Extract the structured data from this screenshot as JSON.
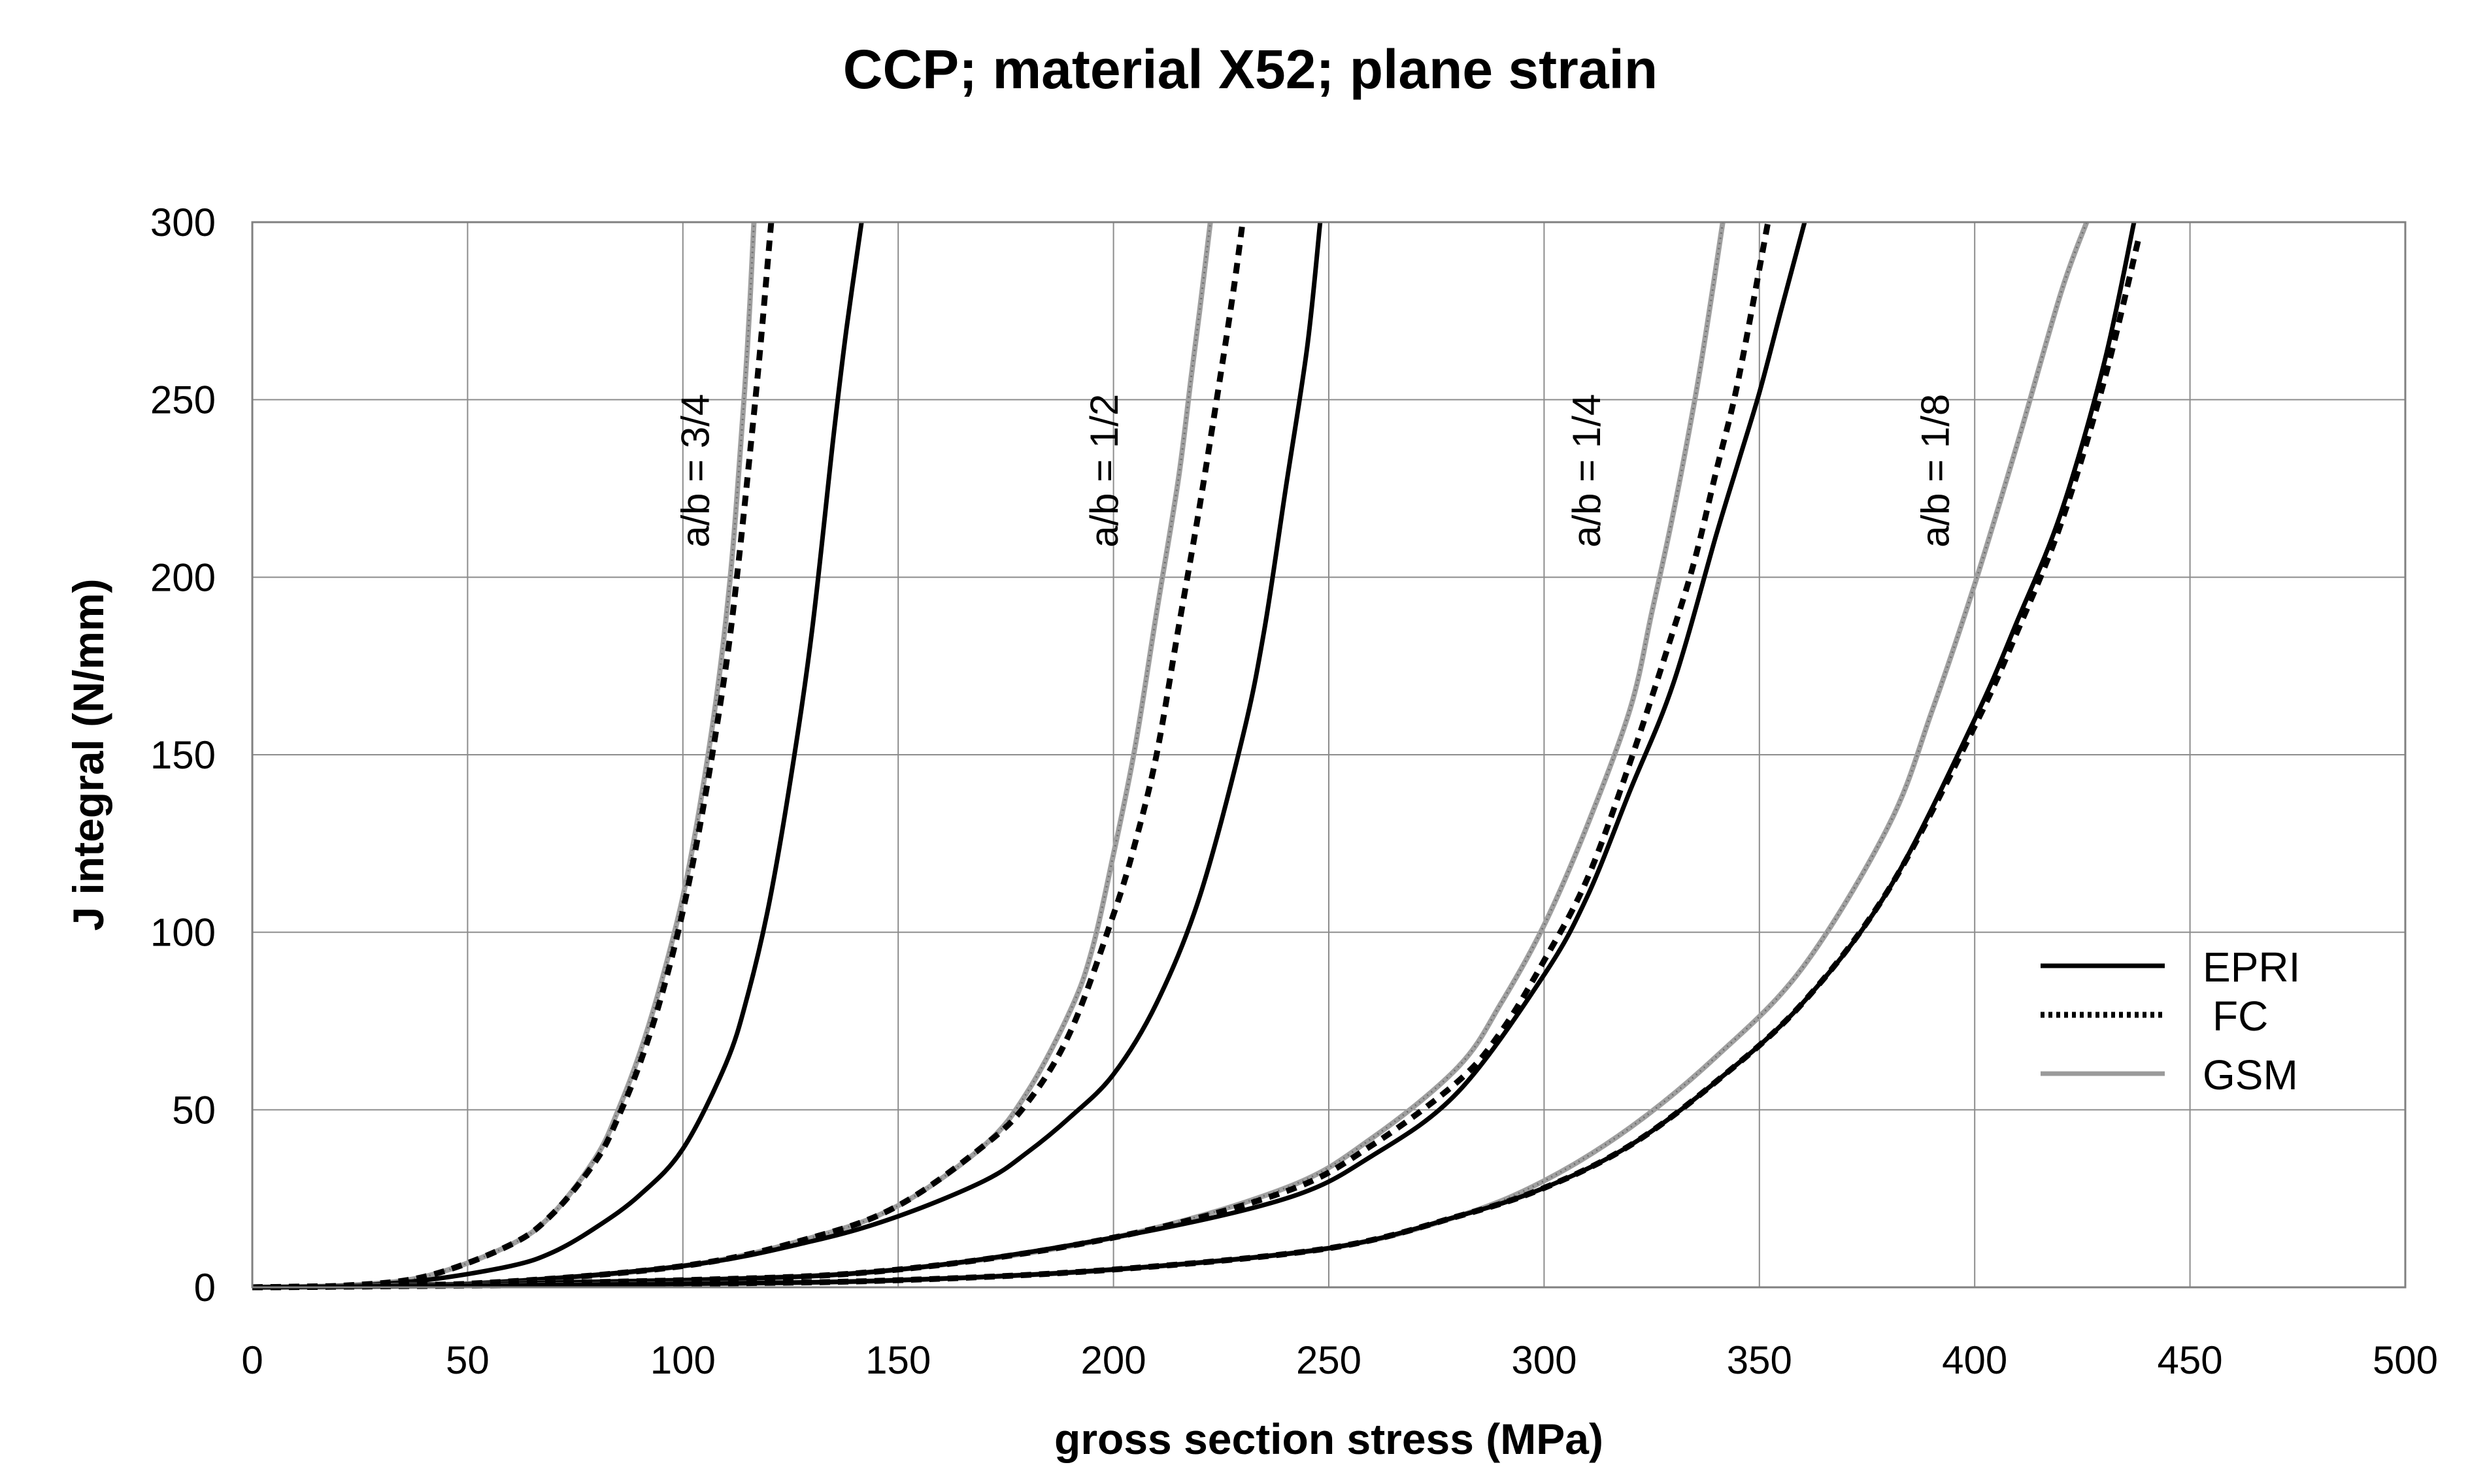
{
  "chart_data": {
    "type": "line",
    "title": "CCP; material X52; plane strain",
    "xlabel": "gross section stress (MPa)",
    "ylabel": "J integral (N/mm)",
    "xlim": [
      0,
      500
    ],
    "ylim": [
      0,
      300
    ],
    "xticks": [
      0,
      50,
      100,
      150,
      200,
      250,
      300,
      350,
      400,
      450,
      500
    ],
    "yticks": [
      0,
      50,
      100,
      150,
      200,
      250,
      300
    ],
    "xtick_labels": [
      "0",
      "50",
      "100",
      "150",
      "200",
      "250",
      "300",
      "350",
      "400",
      "450",
      "500"
    ],
    "ytick_labels": [
      "0",
      "50",
      "100",
      "150",
      "200",
      "250",
      "300"
    ],
    "grid": true,
    "legend": {
      "position": "right",
      "entries": [
        {
          "name": "EPRI",
          "style": "solid",
          "color": "#000000"
        },
        {
          "name": "FC",
          "style": "dotted",
          "color": "#000000"
        },
        {
          "name": "GSM",
          "style": "solid-gray",
          "color": "#9a9a9a"
        }
      ]
    },
    "annotations": [
      {
        "text": "a/b = 3/4",
        "x": 106,
        "y": 230
      },
      {
        "text": "a/b = 1/2",
        "x": 201,
        "y": 230
      },
      {
        "text": "a/b = 1/4",
        "x": 313,
        "y": 230
      },
      {
        "text": "a/b = 1/8",
        "x": 394,
        "y": 230
      }
    ],
    "groups": [
      {
        "label": "a/b = 3/4",
        "series": [
          {
            "name": "EPRI",
            "x": [
              0,
              20,
              40,
              60,
              70,
              80,
              90,
              100,
              110,
              115,
              120,
              125,
              130,
              135,
              138,
              141.5
            ],
            "y": [
              0,
              0.3,
              2,
              6,
              10,
              17,
              26,
              39,
              63,
              82,
              108,
              143,
              185,
              240,
              270,
              300
            ]
          },
          {
            "name": "FC",
            "x": [
              0,
              20,
              40,
              60,
              70,
              80,
              85,
              90,
              95,
              100,
              105,
              110,
              113,
              116,
              118,
              120.5
            ],
            "y": [
              0,
              0.4,
              3,
              12,
              21,
              36,
              48,
              63,
              82,
              106,
              137,
              175,
              205,
              240,
              265,
              300
            ]
          },
          {
            "name": "GSM",
            "x": [
              0,
              20,
              40,
              60,
              70,
              80,
              85,
              90,
              95,
              100,
              104,
              108,
              111,
              113,
              115,
              116.5
            ],
            "y": [
              0,
              0.4,
              3,
              12,
              21,
              37,
              50,
              66,
              86,
              110,
              136,
              168,
              200,
              230,
              265,
              300
            ]
          }
        ]
      },
      {
        "label": "a/b = 1/2",
        "series": [
          {
            "name": "EPRI",
            "x": [
              0,
              50,
              100,
              130,
              150,
              170,
              180,
              190,
              200,
              210,
              220,
              230,
              235,
              240,
              245,
              248
            ],
            "y": [
              0,
              1,
              6,
              13,
              20,
              30,
              38,
              48,
              60,
              80,
              110,
              155,
              185,
              225,
              265,
              300
            ]
          },
          {
            "name": "FC",
            "x": [
              0,
              50,
              100,
              130,
              150,
              170,
              180,
              190,
              200,
              205,
              210,
              215,
              220,
              225,
              228,
              230
            ],
            "y": [
              0,
              1,
              6,
              14,
              23,
              40,
              52,
              72,
              105,
              125,
              150,
              185,
              220,
              258,
              282,
              300
            ]
          },
          {
            "name": "GSM",
            "x": [
              0,
              50,
              100,
              130,
              150,
              170,
              180,
              190,
              195,
              200,
              205,
              210,
              215,
              218,
              220,
              222.5
            ],
            "y": [
              0,
              1,
              6,
              14,
              23,
              40,
              55,
              78,
              95,
              122,
              152,
              190,
              227,
              256,
              275,
              300
            ]
          }
        ]
      },
      {
        "label": "a/b = 1/4",
        "series": [
          {
            "name": "EPRI",
            "x": [
              0,
              100,
              150,
              200,
              240,
              260,
              280,
              300,
              310,
              320,
              330,
              340,
              345,
              350,
              355,
              360.5
            ],
            "y": [
              0,
              2,
              5,
              14,
              25,
              37,
              55,
              88,
              110,
              140,
              170,
              212,
              232,
              252,
              275,
              300
            ]
          },
          {
            "name": "FC",
            "x": [
              0,
              100,
              150,
              200,
              240,
              260,
              280,
              290,
              300,
              310,
              320,
              330,
              335,
              340,
              345,
              352
            ],
            "y": [
              0,
              2,
              5,
              14,
              27,
              40,
              58,
              72,
              92,
              115,
              148,
              185,
              205,
              230,
              255,
              300
            ]
          },
          {
            "name": "GSM",
            "x": [
              0,
              100,
              150,
              200,
              240,
              260,
              280,
              290,
              300,
              310,
              320,
              325,
              330,
              335,
              338,
              341.5
            ],
            "y": [
              0,
              2,
              5,
              14,
              28,
              42,
              62,
              80,
              102,
              130,
              163,
              190,
              218,
              250,
              272,
              300
            ]
          }
        ]
      },
      {
        "label": "a/b = 1/8",
        "series": [
          {
            "name": "EPRI",
            "x": [
              0,
              100,
              150,
              200,
              250,
              280,
              300,
              320,
              340,
              360,
              380,
              400,
              410,
              420,
              430,
              437
            ],
            "y": [
              0,
              1,
              2,
              5,
              11,
              20,
              28,
              40,
              58,
              80,
              112,
              160,
              188,
              218,
              260,
              300
            ]
          },
          {
            "name": "FC",
            "x": [
              0,
              100,
              150,
              200,
              250,
              280,
              300,
              320,
              340,
              360,
              380,
              400,
              410,
              420,
              430,
              438
            ],
            "y": [
              0,
              1,
              2,
              5,
              11,
              20,
              28,
              40,
              58,
              80,
              112,
              158,
              185,
              215,
              255,
              295
            ]
          },
          {
            "name": "GSM",
            "x": [
              0,
              100,
              150,
              200,
              250,
              280,
              300,
              320,
              340,
              360,
              380,
              390,
              400,
              410,
              420,
              426
            ],
            "y": [
              0,
              1,
              2,
              5,
              11,
              20,
              30,
              45,
              65,
              90,
              130,
              162,
              198,
              238,
              280,
              300
            ]
          }
        ]
      }
    ]
  }
}
